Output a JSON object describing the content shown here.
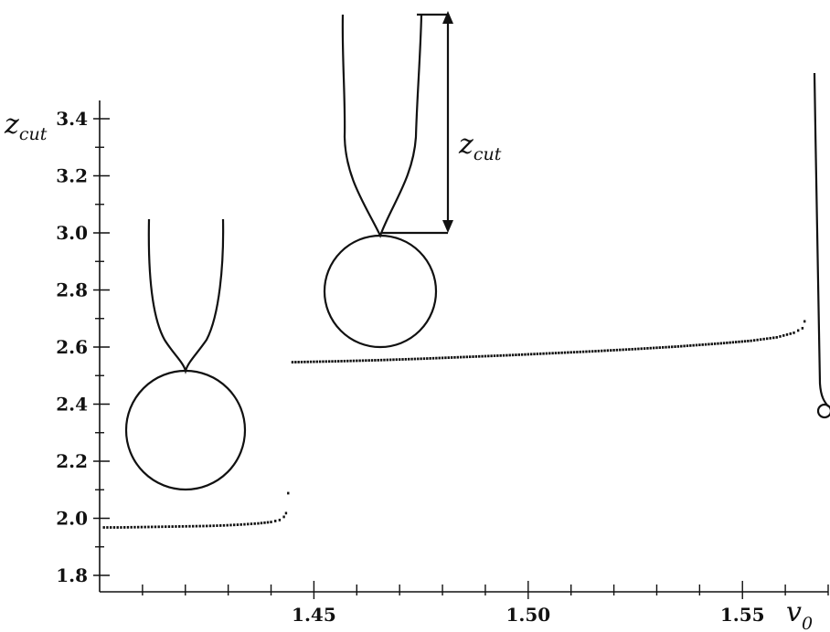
{
  "chart_data": {
    "type": "scatter",
    "title": "",
    "xlabel": "v",
    "xlabel_subscript": "0",
    "ylabel": "z",
    "ylabel_subscript": "cut",
    "xlim": [
      1.4,
      1.57
    ],
    "ylim": [
      1.75,
      3.45
    ],
    "x_ticks": [
      1.45,
      1.5,
      1.55
    ],
    "x_tick_labels": [
      "1.45",
      "1.50",
      "1.55"
    ],
    "y_ticks": [
      1.8,
      2.0,
      2.2,
      2.4,
      2.6,
      2.8,
      3.0,
      3.2,
      3.4
    ],
    "y_tick_labels": [
      "1.8",
      "2.0",
      "2.2",
      "2.4",
      "2.6",
      "2.8",
      "3.0",
      "3.2",
      "3.4"
    ],
    "grid": false,
    "series": [
      {
        "points": [
          [
            1.401,
            1.968
          ],
          [
            1.405,
            1.968
          ],
          [
            1.409,
            1.969
          ],
          [
            1.413,
            1.97
          ],
          [
            1.417,
            1.971
          ],
          [
            1.421,
            1.972
          ],
          [
            1.425,
            1.973
          ],
          [
            1.429,
            1.975
          ],
          [
            1.433,
            1.978
          ],
          [
            1.437,
            1.982
          ],
          [
            1.44,
            1.987
          ],
          [
            1.442,
            1.994
          ],
          [
            1.443,
            2.005
          ],
          [
            1.4435,
            2.018
          ],
          [
            1.444,
            2.088
          ]
        ]
      },
      {
        "points": [
          [
            1.445,
            2.547
          ],
          [
            1.455,
            2.55
          ],
          [
            1.465,
            2.554
          ],
          [
            1.475,
            2.559
          ],
          [
            1.485,
            2.565
          ],
          [
            1.495,
            2.571
          ],
          [
            1.505,
            2.578
          ],
          [
            1.515,
            2.585
          ],
          [
            1.525,
            2.593
          ],
          [
            1.535,
            2.602
          ],
          [
            1.545,
            2.613
          ],
          [
            1.552,
            2.622
          ],
          [
            1.558,
            2.634
          ],
          [
            1.562,
            2.65
          ],
          [
            1.564,
            2.666
          ],
          [
            1.5645,
            2.69
          ]
        ]
      }
    ],
    "annotations": [
      {
        "label": "z",
        "subscript": "cut"
      }
    ]
  }
}
